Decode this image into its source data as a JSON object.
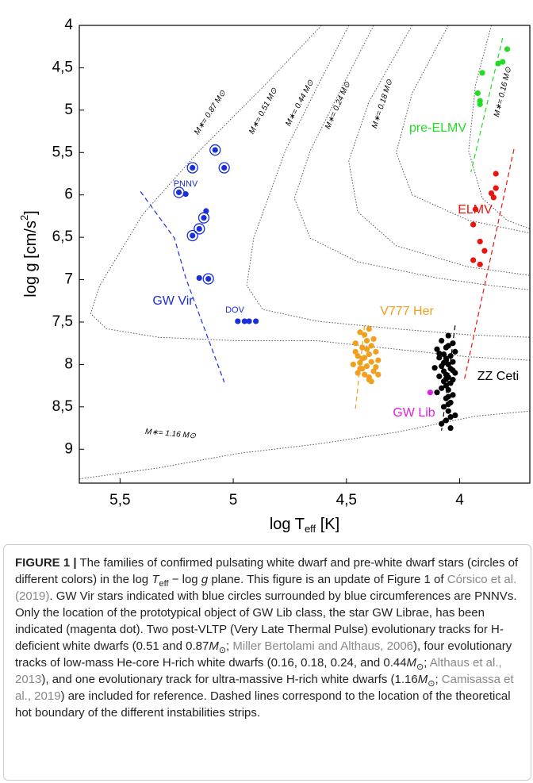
{
  "chart_data": {
    "type": "scatter",
    "xlim": [
      5.68,
      3.69
    ],
    "ylim": [
      4,
      9.4
    ],
    "xticks": [
      {
        "value": 5.5,
        "label": "5,5"
      },
      5,
      {
        "value": 4.5,
        "label": "4,5"
      },
      4
    ],
    "yticks": [
      4,
      {
        "value": 4.5,
        "label": "4,5"
      },
      5,
      {
        "value": 5.5,
        "label": "5,5"
      },
      6,
      {
        "value": 6.5,
        "label": "6,5"
      },
      7,
      {
        "value": 7.5,
        "label": "7,5"
      },
      8,
      {
        "value": 8.5,
        "label": "8,5"
      },
      9
    ],
    "x_label": {
      "main": "log T",
      "sub": "eff",
      "unit": " [K]"
    },
    "y_label": {
      "main": "log g [cm/s",
      "sup": "2",
      "end": "]"
    },
    "series": [
      {
        "name": "GW Vir",
        "color": "#1a2fd6",
        "marker": "dot",
        "x": [
          5.21,
          5.15,
          5.12
        ],
        "y": [
          5.99,
          6.98,
          6.19
        ]
      },
      {
        "name": "PNNV",
        "color": "#1a2fd6",
        "marker": "ringed",
        "x": [
          5.08,
          5.18,
          5.04,
          5.24,
          5.13,
          5.15,
          5.18,
          5.11
        ],
        "y": [
          5.47,
          5.68,
          5.68,
          5.97,
          6.27,
          6.4,
          6.48,
          6.99
        ]
      },
      {
        "name": "DOV",
        "color": "#1a2fd6",
        "marker": "dot",
        "x": [
          4.98,
          4.95,
          4.93,
          4.9
        ],
        "y": [
          7.49,
          7.49,
          7.49,
          7.49
        ]
      },
      {
        "name": "V777 Her",
        "color": "#f0a01e",
        "marker": "dot",
        "x": [
          4.44,
          4.4,
          4.38,
          4.46,
          4.43,
          4.41,
          4.39,
          4.37,
          4.45,
          4.42,
          4.4,
          4.36,
          4.44,
          4.47,
          4.41,
          4.39,
          4.43,
          4.38,
          4.45,
          4.42,
          4.4,
          4.37,
          4.46,
          4.41,
          4.39,
          4.43,
          4.36,
          4.44,
          4.42,
          4.4
        ],
        "y": [
          7.62,
          7.58,
          7.7,
          7.75,
          7.8,
          7.82,
          7.78,
          7.85,
          7.9,
          7.92,
          7.88,
          7.95,
          7.98,
          8.0,
          8.02,
          7.97,
          8.05,
          8.08,
          8.1,
          8.12,
          8.15,
          8.03,
          7.85,
          7.72,
          8.2,
          7.93,
          8.12,
          8.05,
          7.65,
          8.18
        ]
      },
      {
        "name": "ZZ Ceti",
        "color": "#000000",
        "marker": "dot",
        "x": [
          4.05,
          4.08,
          4.03,
          4.06,
          4.1,
          4.02,
          4.07,
          4.04,
          4.09,
          4.06,
          4.03,
          4.05,
          4.08,
          4.11,
          4.04,
          4.07,
          4.02,
          4.06,
          4.09,
          4.05,
          4.03,
          4.07,
          4.04,
          4.06,
          4.08,
          4.05,
          4.1,
          4.03,
          4.06,
          4.04,
          4.07,
          4.05,
          4.02,
          4.06,
          4.08,
          4.04,
          4.05,
          4.07,
          4.03,
          4.06,
          4.09,
          4.05,
          4.04,
          4.06,
          4.05
        ],
        "y": [
          7.66,
          7.72,
          7.75,
          7.8,
          7.82,
          7.85,
          7.88,
          7.9,
          7.92,
          7.95,
          7.97,
          8.0,
          8.02,
          8.04,
          8.05,
          8.08,
          8.1,
          8.12,
          8.14,
          8.15,
          8.18,
          8.2,
          8.22,
          8.25,
          8.28,
          8.3,
          8.33,
          8.36,
          8.4,
          8.45,
          8.5,
          8.55,
          8.6,
          8.66,
          8.7,
          8.75,
          7.78,
          7.98,
          8.07,
          8.17,
          7.87,
          8.38,
          8.62,
          7.93,
          8.47
        ]
      },
      {
        "name": "GW Lib",
        "color": "#e020e0",
        "marker": "dot",
        "x": [
          4.13
        ],
        "y": [
          8.33
        ]
      },
      {
        "name": "ELMV",
        "color": "#e8150f",
        "marker": "dot",
        "x": [
          3.84,
          3.84,
          3.86,
          3.85,
          3.93,
          3.94,
          3.91,
          3.89,
          3.94,
          3.91
        ],
        "y": [
          5.75,
          5.92,
          5.98,
          6.03,
          6.17,
          6.35,
          6.55,
          6.66,
          6.77,
          6.82
        ]
      },
      {
        "name": "pre-ELMV",
        "color": "#22dd22",
        "marker": "dot",
        "x": [
          3.79,
          3.83,
          3.81,
          3.9,
          3.92,
          3.91,
          3.91
        ],
        "y": [
          4.28,
          4.45,
          4.43,
          4.56,
          4.8,
          4.89,
          4.93
        ]
      }
    ],
    "tracks": [
      {
        "label": "M∗= 0.87 M⊙",
        "x": [
          4.61,
          4.87,
          5.15,
          5.4,
          5.59,
          5.63,
          5.56,
          5.33,
          4.98,
          4.63,
          4.28,
          3.96,
          3.69
        ],
        "y": [
          4.0,
          4.73,
          5.48,
          6.23,
          7.07,
          7.4,
          7.58,
          7.68,
          7.72,
          7.72,
          7.82,
          7.91,
          7.95
        ]
      },
      {
        "label": "M∗= 0.51 M⊙",
        "x": [
          4.49,
          4.63,
          4.77,
          4.91,
          4.94,
          4.87,
          4.63,
          4.28,
          3.96,
          3.69
        ],
        "y": [
          4.0,
          4.73,
          5.48,
          6.51,
          7.07,
          7.35,
          7.49,
          7.58,
          7.65,
          7.68
        ]
      },
      {
        "label": "M∗= 0.44 M⊙",
        "x": [
          4.38,
          4.52,
          4.66,
          4.73,
          4.66,
          4.45,
          4.1,
          3.86,
          3.69
        ],
        "y": [
          4.0,
          4.73,
          5.48,
          6.04,
          6.51,
          6.79,
          6.98,
          7.07,
          7.12
        ]
      },
      {
        "label": "M∗= 0.24 M⊙",
        "x": [
          4.21,
          4.4,
          4.49,
          4.45,
          4.28,
          3.96,
          3.69
        ],
        "y": [
          4.0,
          4.9,
          5.6,
          6.2,
          6.6,
          6.85,
          6.95
        ]
      },
      {
        "label": "M∗= 0.18 M⊙",
        "x": [
          4.05,
          4.21,
          4.28,
          4.21,
          3.96,
          3.69
        ],
        "y": [
          4.0,
          4.8,
          5.5,
          6.0,
          6.3,
          6.45
        ]
      },
      {
        "label": "M∗= 0.16 M⊙",
        "x": [
          3.86,
          3.93,
          3.96,
          3.9,
          3.79,
          3.69
        ],
        "y": [
          4.0,
          4.7,
          5.48,
          6.04,
          6.3,
          6.4
        ]
      },
      {
        "label": "M∗= 1.16 M⊙",
        "x": [
          5.68,
          5.33,
          4.98,
          4.63,
          4.28,
          3.93,
          3.69
        ],
        "y": [
          9.35,
          9.22,
          9.05,
          8.94,
          8.8,
          8.61,
          8.55
        ]
      }
    ],
    "boundaries": [
      {
        "color": "#1a2fd6",
        "x": [
          5.41,
          5.26,
          5.21,
          5.04
        ],
        "y": [
          5.96,
          6.51,
          6.98,
          8.21
        ]
      },
      {
        "color": "#e8150f",
        "x": [
          3.76,
          3.98
        ],
        "y": [
          5.46,
          8.19
        ]
      },
      {
        "color": "#22dd22",
        "x": [
          3.81,
          3.95
        ],
        "y": [
          4.15,
          5.73
        ]
      },
      {
        "color": "#f0a01e",
        "x": [
          4.42,
          4.46
        ],
        "y": [
          7.54,
          8.52
        ]
      },
      {
        "color": "#000000",
        "x": [
          4.02,
          4.08
        ],
        "y": [
          7.54,
          8.78
        ]
      }
    ]
  },
  "caption": {
    "label": "FIGURE 1 |",
    "segments": [
      {
        "text": " The families of confirmed pulsating white dwarf and pre-white dwarf stars (circles of different colors) in the log ",
        "style": "plain"
      },
      {
        "text": "T",
        "style": "italic"
      },
      {
        "text": "eff",
        "style": "sub"
      },
      {
        "text": " − log ",
        "style": "plain"
      },
      {
        "text": "g",
        "style": "italic"
      },
      {
        "text": " plane. This figure is an update of Figure 1 of ",
        "style": "plain"
      },
      {
        "text": "Córsico et al. (2019)",
        "style": "link"
      },
      {
        "text": ". GW Vir stars indicated with blue circles surrounded by blue circumferences are PNNVs. Only the location of the prototypical object of GW Lib class, the star GW Librae, has been indicated (magenta dot). Two post-VLTP (Very Late Thermal Pulse) evolutionary tracks for H-deficient white dwarfs (0.51 and 0.87",
        "style": "plain"
      },
      {
        "text": "M",
        "style": "italic"
      },
      {
        "text": "⊙",
        "style": "sub"
      },
      {
        "text": "; ",
        "style": "plain"
      },
      {
        "text": "Miller Bertolami and Althaus, 2006",
        "style": "link"
      },
      {
        "text": "), four evolutionary tracks of low-mass He-core H-rich white dwarfs (0.16, 0.18, 0.24, and 0.44",
        "style": "plain"
      },
      {
        "text": "M",
        "style": "italic"
      },
      {
        "text": "⊙",
        "style": "sub"
      },
      {
        "text": "; ",
        "style": "plain"
      },
      {
        "text": "Althaus et al., 2013",
        "style": "link"
      },
      {
        "text": "), and one evolutionary track for ultra-massive H-rich white dwarfs (1.16",
        "style": "plain"
      },
      {
        "text": "M",
        "style": "italic"
      },
      {
        "text": "⊙",
        "style": "sub"
      },
      {
        "text": "; ",
        "style": "plain"
      },
      {
        "text": "Camisassa et al., 2019",
        "style": "link"
      },
      {
        "text": ") are included for reference. Dashed lines correspond to the location of the theoretical hot boundary of the different instabilities strips.",
        "style": "plain"
      }
    ]
  }
}
